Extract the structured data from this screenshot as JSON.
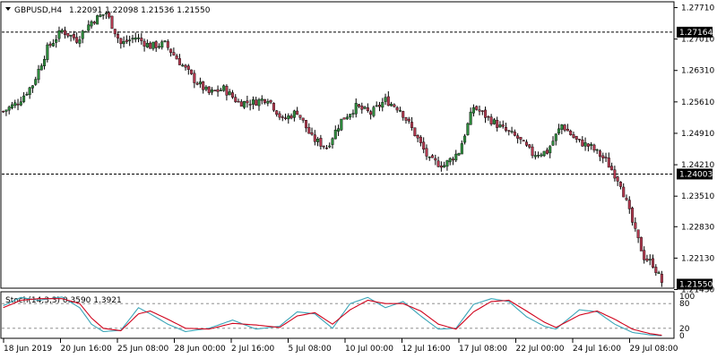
{
  "header": {
    "symbol": "GBPUSD,H4",
    "ohlc": "1.22091 1.22098 1.21536 1.21550"
  },
  "indicator": {
    "label": "Stoch(14,3,3) 0.3590 1.3921",
    "levels": [
      "100",
      "80",
      "20",
      "0"
    ]
  },
  "colors": {
    "bull_body": "#2e8b3d",
    "bear_body": "#b2394f",
    "wick": "#000000",
    "grid": "#7f7f7f",
    "stoch_main": "#3aa5b8",
    "stoch_signal": "#d0021b"
  },
  "chart_data": [
    {
      "type": "candlestick",
      "title": "GBPUSD,H4",
      "price_axis": {
        "range": [
          1.215,
          1.278
        ],
        "ticks": [
          "1.27710",
          "1.27010",
          "1.26310",
          "1.25610",
          "1.24910",
          "1.24210",
          "1.23510",
          "1.22830",
          "1.22130",
          "1.21430"
        ]
      },
      "horizontal_levels": [
        {
          "label": "1.27164",
          "value": 1.27164
        },
        {
          "label": "1.24003",
          "value": 1.24003
        }
      ],
      "current_price_label": "1.21550",
      "x_axis_labels": [
        "18 Jun 2019",
        "20 Jun 16:00",
        "25 Jun 08:00",
        "28 Jun 00:00",
        "2 Jul 16:00",
        "5 Jul 08:00",
        "10 Jul 00:00",
        "12 Jul 16:00",
        "17 Jul 08:00",
        "22 Jul 00:00",
        "24 Jul 16:00",
        "29 Jul 08:00"
      ],
      "close_path": [
        [
          0,
          1.254
        ],
        [
          5,
          1.256
        ],
        [
          10,
          1.26
        ],
        [
          15,
          1.268
        ],
        [
          20,
          1.272
        ],
        [
          25,
          1.27
        ],
        [
          30,
          1.274
        ],
        [
          35,
          1.276
        ],
        [
          40,
          1.269
        ],
        [
          45,
          1.2705
        ],
        [
          50,
          1.2685
        ],
        [
          55,
          1.269
        ],
        [
          60,
          1.265
        ],
        [
          65,
          1.261
        ],
        [
          70,
          1.258
        ],
        [
          75,
          1.259
        ],
        [
          80,
          1.256
        ],
        [
          85,
          1.256
        ],
        [
          90,
          1.257
        ],
        [
          95,
          1.252
        ],
        [
          100,
          1.254
        ],
        [
          105,
          1.248
        ],
        [
          110,
          1.246
        ],
        [
          115,
          1.252
        ],
        [
          120,
          1.255
        ],
        [
          125,
          1.2535
        ],
        [
          130,
          1.2565
        ],
        [
          135,
          1.2545
        ],
        [
          140,
          1.249
        ],
        [
          145,
          1.243
        ],
        [
          150,
          1.242
        ],
        [
          155,
          1.245
        ],
        [
          160,
          1.255
        ],
        [
          165,
          1.2525
        ],
        [
          170,
          1.25
        ],
        [
          175,
          1.248
        ],
        [
          180,
          1.2445
        ],
        [
          185,
          1.245
        ],
        [
          190,
          1.251
        ],
        [
          195,
          1.2475
        ],
        [
          200,
          1.246
        ],
        [
          205,
          1.243
        ],
        [
          210,
          1.238
        ],
        [
          215,
          1.227
        ],
        [
          218,
          1.2215
        ],
        [
          221,
          1.22
        ],
        [
          224,
          1.216
        ]
      ],
      "stoch_main_path": [
        [
          0,
          75
        ],
        [
          6,
          95
        ],
        [
          12,
          88
        ],
        [
          20,
          96
        ],
        [
          26,
          70
        ],
        [
          30,
          30
        ],
        [
          34,
          12
        ],
        [
          40,
          15
        ],
        [
          46,
          70
        ],
        [
          50,
          55
        ],
        [
          56,
          30
        ],
        [
          62,
          12
        ],
        [
          70,
          20
        ],
        [
          78,
          40
        ],
        [
          86,
          18
        ],
        [
          94,
          25
        ],
        [
          100,
          60
        ],
        [
          106,
          55
        ],
        [
          112,
          20
        ],
        [
          118,
          80
        ],
        [
          124,
          95
        ],
        [
          130,
          70
        ],
        [
          136,
          85
        ],
        [
          142,
          50
        ],
        [
          148,
          18
        ],
        [
          154,
          20
        ],
        [
          160,
          78
        ],
        [
          166,
          92
        ],
        [
          172,
          85
        ],
        [
          178,
          48
        ],
        [
          184,
          25
        ],
        [
          188,
          18
        ],
        [
          196,
          65
        ],
        [
          202,
          60
        ],
        [
          208,
          30
        ],
        [
          214,
          10
        ],
        [
          220,
          4
        ],
        [
          224,
          2
        ]
      ],
      "stoch_signal_path": [
        [
          0,
          70
        ],
        [
          6,
          88
        ],
        [
          12,
          92
        ],
        [
          20,
          92
        ],
        [
          26,
          80
        ],
        [
          30,
          45
        ],
        [
          34,
          20
        ],
        [
          40,
          14
        ],
        [
          46,
          55
        ],
        [
          50,
          62
        ],
        [
          56,
          42
        ],
        [
          62,
          20
        ],
        [
          70,
          18
        ],
        [
          78,
          32
        ],
        [
          86,
          28
        ],
        [
          94,
          22
        ],
        [
          100,
          50
        ],
        [
          106,
          58
        ],
        [
          112,
          30
        ],
        [
          118,
          65
        ],
        [
          124,
          88
        ],
        [
          130,
          80
        ],
        [
          136,
          80
        ],
        [
          142,
          62
        ],
        [
          148,
          30
        ],
        [
          154,
          18
        ],
        [
          160,
          60
        ],
        [
          166,
          85
        ],
        [
          172,
          88
        ],
        [
          178,
          62
        ],
        [
          184,
          35
        ],
        [
          188,
          22
        ],
        [
          196,
          52
        ],
        [
          202,
          62
        ],
        [
          208,
          42
        ],
        [
          214,
          18
        ],
        [
          220,
          7
        ],
        [
          224,
          3
        ]
      ],
      "candle_count": 225
    }
  ]
}
